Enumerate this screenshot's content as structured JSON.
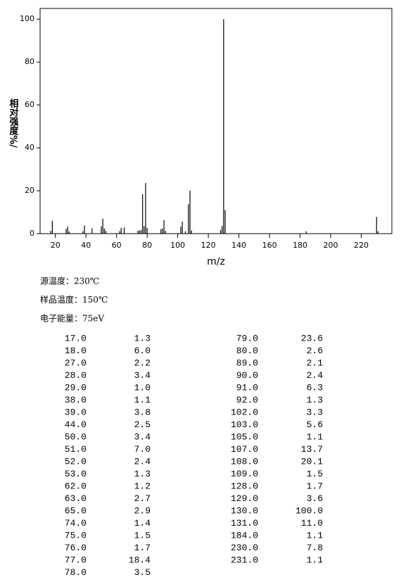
{
  "chart_data": {
    "type": "bar",
    "x_label": "m/z",
    "y_label": "相对强度%/",
    "x": [
      17,
      18,
      27,
      28,
      29,
      38,
      39,
      44,
      50,
      51,
      52,
      53,
      62,
      63,
      65,
      74,
      75,
      76,
      77,
      78,
      79,
      80,
      89,
      90,
      91,
      92,
      102,
      103,
      105,
      107,
      108,
      109,
      128,
      129,
      130,
      131,
      184,
      230,
      231
    ],
    "values": [
      1.3,
      6.0,
      2.2,
      3.4,
      1.0,
      1.1,
      3.8,
      2.5,
      3.4,
      7.0,
      2.4,
      1.3,
      1.2,
      2.7,
      2.9,
      1.4,
      1.5,
      1.7,
      18.4,
      3.5,
      23.6,
      2.6,
      2.1,
      2.4,
      6.3,
      1.3,
      3.3,
      5.6,
      1.1,
      13.7,
      20.1,
      1.5,
      1.7,
      3.6,
      100.0,
      11.0,
      1.1,
      7.8,
      1.1
    ],
    "x_labels": [
      "17.0",
      "18.0",
      "27.0",
      "28.0",
      "29.0",
      "38.0",
      "39.0",
      "44.0",
      "50.0",
      "51.0",
      "52.0",
      "53.0",
      "62.0",
      "63.0",
      "65.0",
      "74.0",
      "75.0",
      "76.0",
      "77.0",
      "78.0",
      "79.0",
      "80.0",
      "89.0",
      "90.0",
      "91.0",
      "92.0",
      "102.0",
      "103.0",
      "105.0",
      "107.0",
      "108.0",
      "109.0",
      "128.0",
      "129.0",
      "130.0",
      "131.0",
      "184.0",
      "230.0",
      "231.0"
    ],
    "value_labels": [
      "1.3",
      "6.0",
      "2.2",
      "3.4",
      "1.0",
      "1.1",
      "3.8",
      "2.5",
      "3.4",
      "7.0",
      "2.4",
      "1.3",
      "1.2",
      "2.7",
      "2.9",
      "1.4",
      "1.5",
      "1.7",
      "18.4",
      "3.5",
      "23.6",
      "2.6",
      "2.1",
      "2.4",
      "6.3",
      "1.3",
      "3.3",
      "5.6",
      "1.1",
      "13.7",
      "20.1",
      "1.5",
      "1.7",
      "3.6",
      "100.0",
      "11.0",
      "1.1",
      "7.8",
      "1.1"
    ],
    "color": "#000000",
    "xlim": [
      10,
      240
    ],
    "xticks": [
      20,
      40,
      60,
      80,
      100,
      120,
      140,
      160,
      180,
      200,
      220
    ],
    "ylim": [
      0,
      105
    ],
    "yticks": [
      0,
      20,
      40,
      60,
      80,
      100
    ]
  },
  "conditions": [
    "源温度：230℃",
    "样品温度：150℃",
    "电子能量：75eV"
  ]
}
